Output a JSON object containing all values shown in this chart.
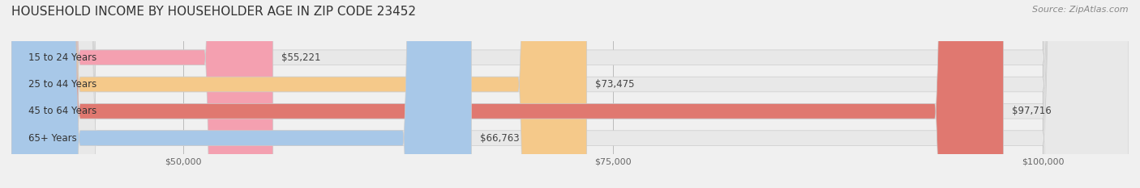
{
  "title": "HOUSEHOLD INCOME BY HOUSEHOLDER AGE IN ZIP CODE 23452",
  "source": "Source: ZipAtlas.com",
  "categories": [
    "15 to 24 Years",
    "25 to 44 Years",
    "45 to 64 Years",
    "65+ Years"
  ],
  "values": [
    55221,
    73475,
    97716,
    66763
  ],
  "bar_colors": [
    "#f4a0b0",
    "#f5c98a",
    "#e07870",
    "#a8c8e8"
  ],
  "bar_edge_colors": [
    "#e08090",
    "#e0a060",
    "#c05858",
    "#80a8d0"
  ],
  "value_labels": [
    "$55,221",
    "$73,475",
    "$97,716",
    "$66,763"
  ],
  "xlim": [
    40000,
    105000
  ],
  "xticks": [
    50000,
    75000,
    100000
  ],
  "xticklabels": [
    "$50,000",
    "$75,000",
    "$100,000"
  ],
  "background_color": "#f0f0f0",
  "bar_bg_color": "#e8e8e8",
  "title_fontsize": 11,
  "source_fontsize": 8,
  "label_fontsize": 8.5,
  "tick_fontsize": 8,
  "value_fontsize": 8.5,
  "bar_height": 0.55,
  "fig_width": 14.06,
  "fig_height": 2.33
}
